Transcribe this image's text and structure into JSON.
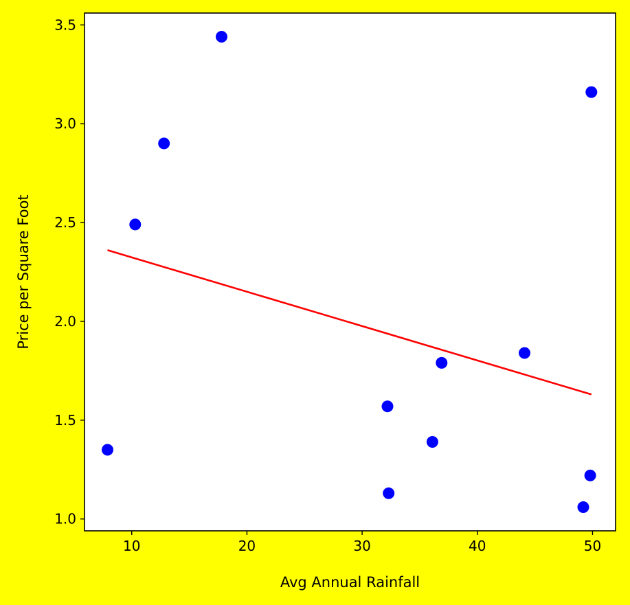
{
  "chart_data": {
    "type": "scatter",
    "title": "",
    "xlabel": "Avg Annual Rainfall",
    "ylabel": "Price per Square Foot",
    "xlim": [
      5.9,
      52.0
    ],
    "ylim": [
      0.94,
      3.56
    ],
    "xticks": [
      10,
      20,
      30,
      40,
      50
    ],
    "yticks": [
      1.0,
      1.5,
      2.0,
      2.5,
      3.0,
      3.5
    ],
    "xtick_labels": [
      "10",
      "20",
      "30",
      "40",
      "50"
    ],
    "ytick_labels": [
      "1.0",
      "1.5",
      "2.0",
      "2.5",
      "3.0",
      "3.5"
    ],
    "grid": false,
    "legend": "none",
    "series": [
      {
        "kind": "points",
        "color": "#0000ff",
        "points": [
          {
            "x": 7.9,
            "y": 1.35
          },
          {
            "x": 10.3,
            "y": 2.49
          },
          {
            "x": 12.8,
            "y": 2.9
          },
          {
            "x": 17.8,
            "y": 3.44
          },
          {
            "x": 32.2,
            "y": 1.57
          },
          {
            "x": 32.3,
            "y": 1.13
          },
          {
            "x": 36.1,
            "y": 1.39
          },
          {
            "x": 36.9,
            "y": 1.79
          },
          {
            "x": 44.1,
            "y": 1.84
          },
          {
            "x": 49.2,
            "y": 1.06
          },
          {
            "x": 49.8,
            "y": 1.22
          },
          {
            "x": 49.9,
            "y": 3.16
          }
        ]
      },
      {
        "kind": "trend-line",
        "color": "#ff0000",
        "points": [
          {
            "x": 7.9,
            "y": 2.36
          },
          {
            "x": 49.9,
            "y": 1.63
          }
        ]
      }
    ],
    "colors": {
      "background": "#ffff00",
      "plot_area": "#ffffff",
      "points": "#0000ff",
      "trend_line": "#ff0000"
    }
  }
}
